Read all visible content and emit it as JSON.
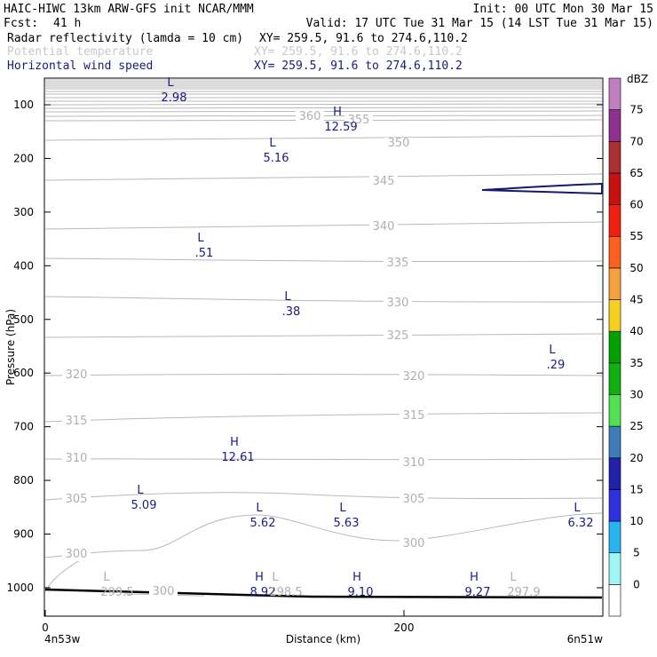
{
  "header": {
    "title_left": "HAIC-HIWC 13km ARW-GFS init   NCAR/MMM",
    "init": "Init: 00 UTC Mon 30 Mar 15",
    "fcst_label": "Fcst:",
    "fcst_value": "41 h",
    "valid": "Valid: 17 UTC Tue 31 Mar 15 (14 LST Tue 31 Mar 15)",
    "fields": [
      {
        "name": "Radar reflectivity (lamda = 10 cm)",
        "xy": "XY= 259.5, 91.6 to 274.6,110.2",
        "color": "#000000"
      },
      {
        "name": "Potential temperature",
        "xy": "XY= 259.5, 91.6 to 274.6,110.2",
        "color": "#c8c8c8"
      },
      {
        "name": "Horizontal wind speed",
        "xy": "XY= 259.5, 91.6 to 274.6,110.2",
        "color": "#1a1a7a"
      }
    ]
  },
  "chart_data": {
    "type": "contour",
    "ylabel": "Pressure (hPa)",
    "xlabel": "Distance (km)",
    "x_ticks": [
      "0",
      "200"
    ],
    "x_end_labels": [
      "4n53w",
      "6n51w"
    ],
    "y_ticks": [
      "100",
      "200",
      "300",
      "400",
      "500",
      "600",
      "700",
      "800",
      "900",
      "1000"
    ],
    "colorbar": {
      "unit": "dBZ",
      "levels": [
        "0",
        "5",
        "10",
        "15",
        "20",
        "25",
        "30",
        "35",
        "40",
        "45",
        "50",
        "55",
        "60",
        "65",
        "70",
        "75"
      ],
      "colors": [
        "#ffffff",
        "#9ff5f5",
        "#28b4f0",
        "#3030e0",
        "#2020a8",
        "#3c7cb8",
        "#50e050",
        "#10b010",
        "#00a000",
        "#f5d020",
        "#f5a040",
        "#ff6020",
        "#f02010",
        "#c81010",
        "#a83030",
        "#903090",
        "#c080c0"
      ]
    },
    "potential_temperature_labels": [
      "360",
      "355",
      "350",
      "345",
      "340",
      "335",
      "330",
      "325",
      "320",
      "320",
      "315",
      "315",
      "310",
      "310",
      "305",
      "305",
      "300",
      "300",
      "300"
    ],
    "wind_extrema": [
      {
        "type": "L",
        "value": "2.98"
      },
      {
        "type": "H",
        "value": "12.59"
      },
      {
        "type": "L",
        "value": "5.16"
      },
      {
        "type": "L",
        "value": ".51"
      },
      {
        "type": "L",
        "value": ".38"
      },
      {
        "type": "L",
        "value": ".29"
      },
      {
        "type": "H",
        "value": "12.61"
      },
      {
        "type": "L",
        "value": "5.09"
      },
      {
        "type": "L",
        "value": "5.62"
      },
      {
        "type": "L",
        "value": "5.63"
      },
      {
        "type": "L",
        "value": "6.32"
      },
      {
        "type": "H",
        "value": "8.92"
      },
      {
        "type": "H",
        "value": "9.10"
      },
      {
        "type": "H",
        "value": "9.27"
      }
    ],
    "theta_extrema": [
      {
        "type": "L",
        "value": "299.5"
      },
      {
        "type": "L",
        "value": "298.5"
      },
      {
        "type": "L",
        "value": "297.9"
      }
    ]
  }
}
